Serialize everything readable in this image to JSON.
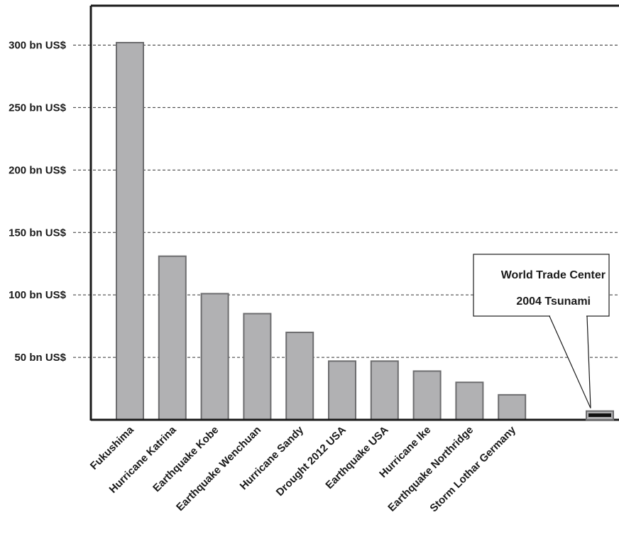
{
  "chart_data": {
    "type": "bar",
    "title": "",
    "xlabel": "",
    "ylabel": "",
    "ylim": [
      0,
      335
    ],
    "y_ticks": [
      {
        "value": 50,
        "label": "50 bn US$"
      },
      {
        "value": 100,
        "label": "100 bn US$"
      },
      {
        "value": 150,
        "label": "150 bn US$"
      },
      {
        "value": 200,
        "label": "200 bn US$"
      },
      {
        "value": 250,
        "label": "250 bn US$"
      },
      {
        "value": 300,
        "label": "300 bn US$"
      }
    ],
    "grid": true,
    "categories": [
      "Fukushima",
      "Hurricane Katrina",
      "Earthquake Kobe",
      "Earthquake Wenchuan",
      "Hurricane Sandy",
      "Drought 2012 USA",
      "Earthquake USA",
      "Hurricane Ike",
      "Earthquake Northridge",
      "Storm Lothar Germany"
    ],
    "values": [
      302,
      131,
      101,
      85,
      70,
      47,
      47,
      39,
      30,
      20
    ],
    "callout": {
      "labels": [
        "World Trade Center",
        "2004 Tsunami"
      ],
      "outer_value": 7,
      "inner_value": 4
    },
    "colors": {
      "bar_fill": "#b1b1b3",
      "bar_stroke": "#6d6d6f",
      "axis": "#1a1a1a",
      "grid": "#333333",
      "small_bar_inner": "#111111"
    }
  }
}
